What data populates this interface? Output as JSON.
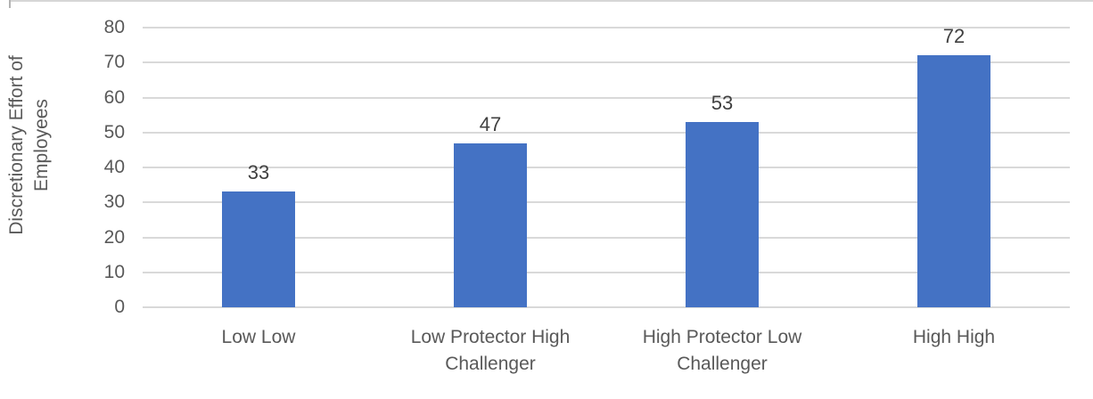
{
  "chart_data": {
    "type": "bar",
    "title": "",
    "xlabel": "",
    "ylabel": "Discretionary Effort of Employees",
    "ylabel_lines": [
      "Discretionary Effort of",
      "Employees"
    ],
    "categories": [
      "Low Low",
      "Low Protector High Challenger",
      "High Protector Low Challenger",
      "High High"
    ],
    "values": [
      33,
      47,
      53,
      72
    ],
    "data_labels": [
      "33",
      "47",
      "53",
      "72"
    ],
    "ylim": [
      0,
      80
    ],
    "yticks": [
      0,
      10,
      20,
      30,
      40,
      50,
      60,
      70,
      80
    ],
    "grid": true,
    "legend": "none",
    "colors": {
      "bar": "#4472C4",
      "gridline": "#D9D9D9",
      "axis_text": "#595959",
      "data_label": "#404040",
      "background": "#FFFFFF"
    }
  }
}
